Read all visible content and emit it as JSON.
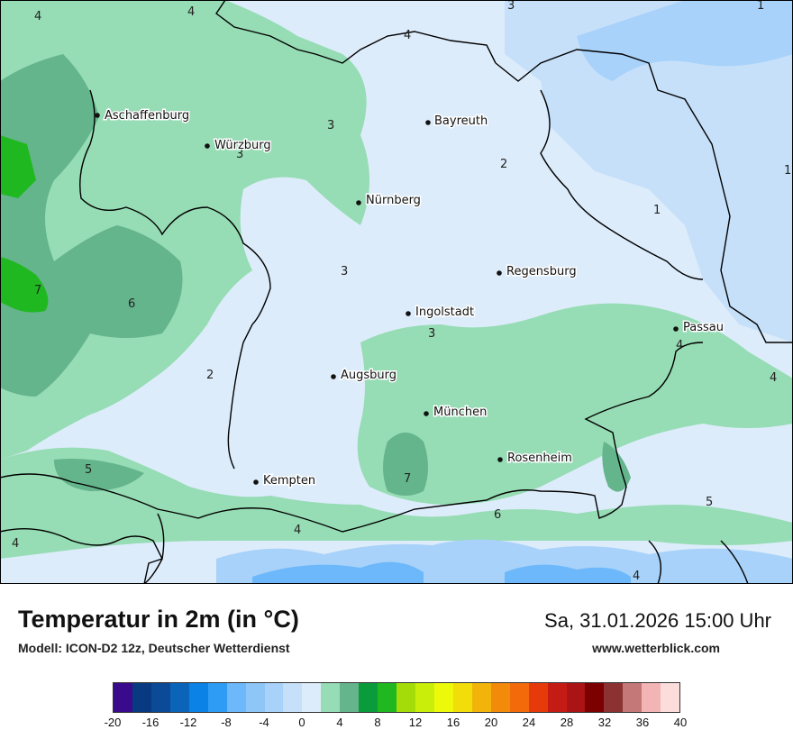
{
  "map": {
    "cities": [
      {
        "name": "Aschaffenburg"
      },
      {
        "name": "Würzburg"
      },
      {
        "name": "Bayreuth"
      },
      {
        "name": "Nürnberg"
      },
      {
        "name": "Regensburg"
      },
      {
        "name": "Ingolstadt"
      },
      {
        "name": "Passau"
      },
      {
        "name": "Augsburg"
      },
      {
        "name": "München"
      },
      {
        "name": "Rosenheim"
      },
      {
        "name": "Kempten"
      }
    ],
    "contour_labels": [
      "4",
      "4",
      "3",
      "1",
      "1",
      "3",
      "3",
      "2",
      "1",
      "3",
      "7",
      "6",
      "3",
      "2",
      "4",
      "4",
      "5",
      "7",
      "4",
      "6",
      "4",
      "5",
      "4",
      "4"
    ]
  },
  "footer": {
    "title": "Temperatur in 2m (in °C)",
    "subtitle": "Modell: ICON-D2 12z, Deutscher Wetterdienst",
    "datetime": "Sa, 31.01.2026 15:00 Uhr",
    "website": "www.wetterblick.com"
  },
  "legend": {
    "ticks": [
      "-20",
      "-16",
      "-12",
      "-8",
      "-4",
      "0",
      "4",
      "8",
      "12",
      "16",
      "20",
      "24",
      "28",
      "32",
      "36",
      "40"
    ],
    "colors": [
      "#3a0a8c",
      "#083a82",
      "#0a4a96",
      "#0a64b8",
      "#0a82e6",
      "#2e9cf5",
      "#6cb8fa",
      "#8ec6f8",
      "#a8d2fa",
      "#c6e0fa",
      "#ddecfb",
      "#96dcb4",
      "#64b48c",
      "#0a9c3a",
      "#20b820",
      "#a4dc0a",
      "#c8ee0a",
      "#ecfa0a",
      "#f2dc0a",
      "#f2b40a",
      "#f28a0a",
      "#f26a0a",
      "#e63a0a",
      "#c41c14",
      "#aa1414",
      "#7c0000",
      "#8c3232",
      "#c47878",
      "#f2b4b4",
      "#fddcdc"
    ]
  }
}
